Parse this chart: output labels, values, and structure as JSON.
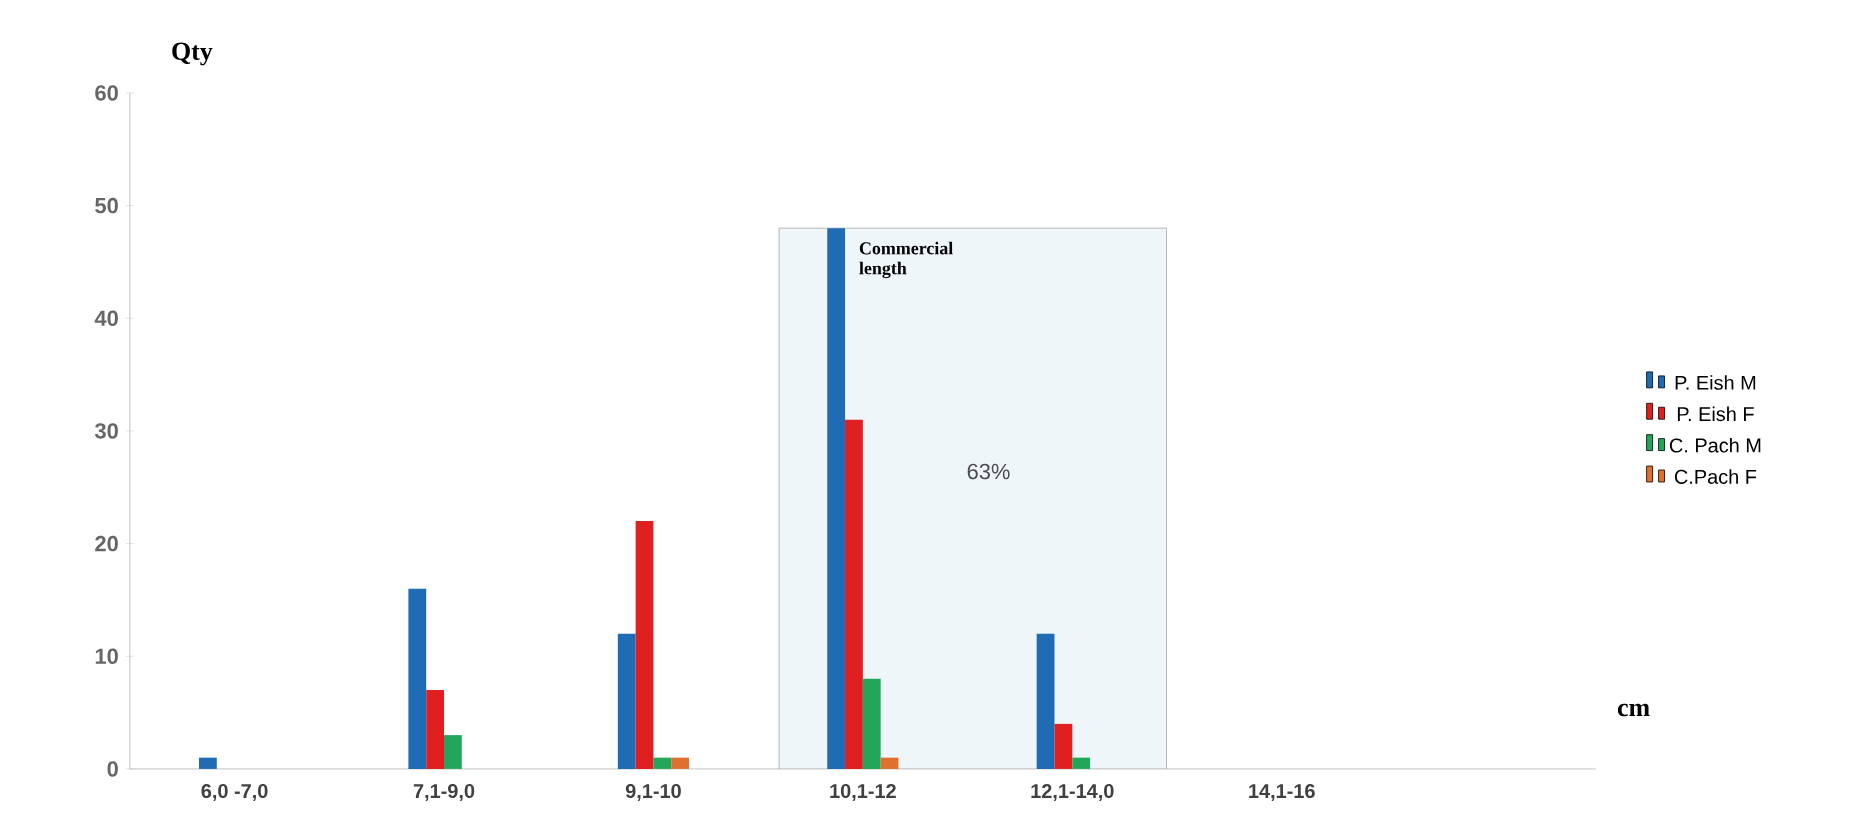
{
  "chart_data": {
    "type": "bar",
    "ylabel": "Qty",
    "xlabel": "cm",
    "categories": [
      "6,0 -7,0",
      "7,1-9,0",
      "9,1-10",
      "10,1-12",
      "12,1-14,0",
      "14,1-16",
      null
    ],
    "series": [
      {
        "name": "P. Eish M",
        "color": "#1f6bb4",
        "values": [
          1,
          16,
          12,
          48,
          12,
          0,
          0
        ]
      },
      {
        "name": "P. Eish F",
        "color": "#e02020",
        "values": [
          0,
          7,
          22,
          31,
          4,
          0,
          0
        ]
      },
      {
        "name": "C. Pach M",
        "color": "#22a65a",
        "values": [
          0,
          3,
          1,
          8,
          1,
          0,
          0
        ]
      },
      {
        "name": "C.Pach F",
        "color": "#e07030",
        "values": [
          0,
          0,
          1,
          1,
          0,
          0,
          0
        ]
      }
    ],
    "ylim": [
      0,
      60
    ],
    "yticks": [
      0,
      10,
      20,
      30,
      40,
      50,
      60
    ],
    "bands": [
      {
        "axis": "x",
        "from": "10,1-12",
        "to": "12,1-14,0",
        "label": "Commercial length",
        "color": "#eef6fa"
      }
    ],
    "annotations": [
      "63%"
    ],
    "legend": "right",
    "grid": false
  }
}
